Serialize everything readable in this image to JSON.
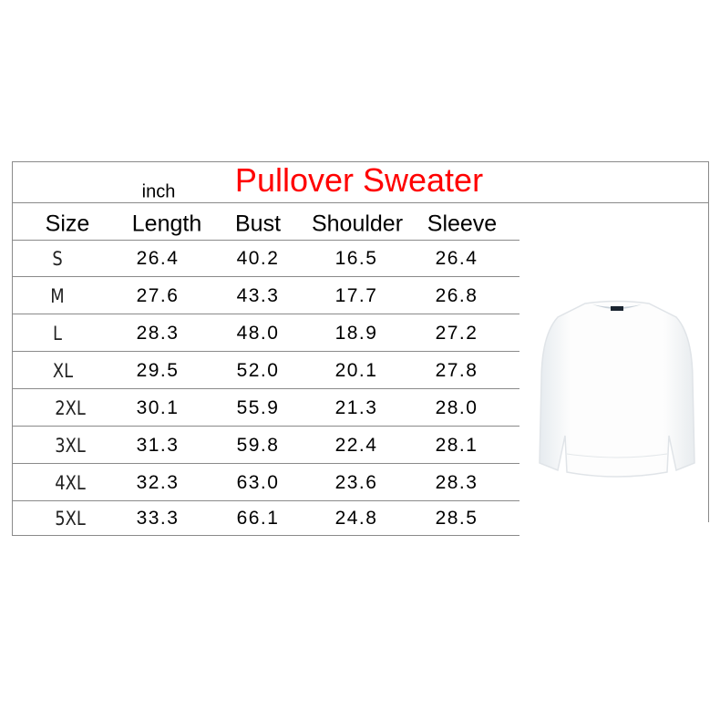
{
  "title": "Pullover Sweater",
  "unit": "inch",
  "title_color": "#ff0000",
  "headers": [
    "Size",
    "Length",
    "Bust",
    "Shoulder",
    "Sleeve"
  ],
  "rows": [
    [
      "S",
      "26.4",
      "40.2",
      "16.5",
      "26.4"
    ],
    [
      "M",
      "27.6",
      "43.3",
      "17.7",
      "26.8"
    ],
    [
      "L",
      "28.3",
      "48.0",
      "18.9",
      "27.2"
    ],
    [
      "XL",
      "29.5",
      "52.0",
      "20.1",
      "27.8"
    ],
    [
      "2XL",
      "30.1",
      "55.9",
      "21.3",
      "28.0"
    ],
    [
      "3XL",
      "31.3",
      "59.8",
      "22.4",
      "28.1"
    ],
    [
      "4XL",
      "32.3",
      "63.0",
      "23.6",
      "28.3"
    ],
    [
      "5XL",
      "33.3",
      "66.1",
      "24.8",
      "28.5"
    ]
  ],
  "product_image": "white-crewneck-sweatshirt"
}
